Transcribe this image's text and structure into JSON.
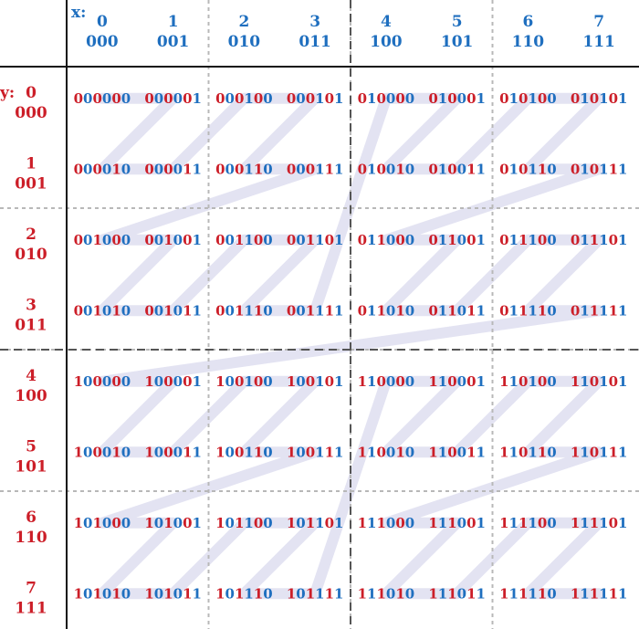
{
  "axis_labels": {
    "x": "x:",
    "y": "y:"
  },
  "colors": {
    "x_bits": "#1f6fbf",
    "y_bits": "#cc1e28",
    "path": "#e3e3f2",
    "major_grid": "#555555",
    "minor_grid": "#b8b8b8",
    "axis": "#111111"
  },
  "columns": [
    {
      "index": "0",
      "binary": "000"
    },
    {
      "index": "1",
      "binary": "001"
    },
    {
      "index": "2",
      "binary": "010"
    },
    {
      "index": "3",
      "binary": "011"
    },
    {
      "index": "4",
      "binary": "100"
    },
    {
      "index": "5",
      "binary": "101"
    },
    {
      "index": "6",
      "binary": "110"
    },
    {
      "index": "7",
      "binary": "111"
    }
  ],
  "rows": [
    {
      "index": "0",
      "binary": "000"
    },
    {
      "index": "1",
      "binary": "001"
    },
    {
      "index": "2",
      "binary": "010"
    },
    {
      "index": "3",
      "binary": "011"
    },
    {
      "index": "4",
      "binary": "100"
    },
    {
      "index": "5",
      "binary": "101"
    },
    {
      "index": "6",
      "binary": "110"
    },
    {
      "index": "7",
      "binary": "111"
    }
  ],
  "cells": [
    [
      "000000",
      "000001",
      "000100",
      "000101",
      "010000",
      "010001",
      "010100",
      "010101"
    ],
    [
      "000010",
      "000011",
      "000110",
      "000111",
      "010010",
      "010011",
      "010110",
      "010111"
    ],
    [
      "001000",
      "001001",
      "001100",
      "001101",
      "011000",
      "011001",
      "011100",
      "011101"
    ],
    [
      "001010",
      "001011",
      "001110",
      "001111",
      "011010",
      "011011",
      "011110",
      "011111"
    ],
    [
      "100000",
      "100001",
      "100100",
      "100101",
      "110000",
      "110001",
      "110100",
      "110101"
    ],
    [
      "100010",
      "100011",
      "100110",
      "100111",
      "110010",
      "110011",
      "110110",
      "110111"
    ],
    [
      "101000",
      "101001",
      "101100",
      "101101",
      "111000",
      "111001",
      "111100",
      "111101"
    ],
    [
      "101010",
      "101011",
      "101110",
      "101111",
      "111010",
      "111011",
      "111110",
      "111111"
    ]
  ]
}
